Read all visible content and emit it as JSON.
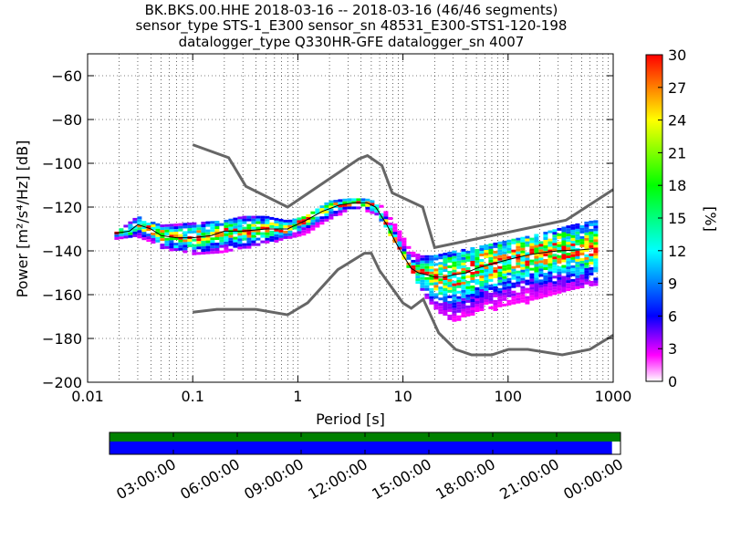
{
  "title_lines": [
    "BK.BKS.00.HHE   2018-03-16 -- 2018-03-16  (46/46 segments)",
    "sensor_type STS-1_E300 sensor_sn 48531_E300-STS1-120-198",
    "datalogger_type Q330HR-GFE datalogger_sn 4007"
  ],
  "chart_data": {
    "type": "heatmap",
    "xlabel": "Period [s]",
    "ylabel": "Power [m²/s⁴/Hz] [dB]",
    "x_scale": "log",
    "xlim": [
      0.01,
      1000
    ],
    "ylim": [
      -200,
      -50
    ],
    "x_ticks": [
      0.01,
      0.1,
      1,
      10,
      100,
      1000
    ],
    "x_tick_labels": [
      "0.01",
      "0.1",
      "1",
      "10",
      "100",
      "1000"
    ],
    "y_ticks": [
      -200,
      -180,
      -160,
      -140,
      -120,
      -100,
      -80,
      -60
    ],
    "y_tick_labels": [
      "−200",
      "−180",
      "−160",
      "−140",
      "−120",
      "−100",
      "−80",
      "−60"
    ],
    "grid": true,
    "colorbar": {
      "label": "[%]",
      "range": [
        0,
        30
      ],
      "ticks": [
        0,
        3,
        6,
        9,
        12,
        15,
        18,
        21,
        24,
        27,
        30
      ],
      "colormap": "pqlx"
    },
    "noise_models": {
      "high": {
        "period": [
          0.1,
          0.22,
          0.32,
          0.8,
          3.8,
          4.6,
          6.3,
          7.9,
          15.4,
          20,
          354.8,
          1000
        ],
        "power": [
          -91.5,
          -97.4,
          -110.5,
          -120,
          -98,
          -96.5,
          -101,
          -113.5,
          -120,
          -138.5,
          -126,
          -112
        ]
      },
      "low": {
        "period": [
          0.1,
          0.17,
          0.4,
          0.8,
          1.24,
          2.4,
          4.3,
          5,
          6,
          10,
          12,
          15.6,
          21.9,
          31.6,
          45,
          70,
          101,
          154,
          328,
          600,
          1000
        ],
        "power": [
          -168,
          -166.7,
          -166.7,
          -169.2,
          -163.7,
          -148.6,
          -141.1,
          -141.1,
          -149,
          -163.8,
          -166.2,
          -162.1,
          -177.5,
          -185,
          -187.5,
          -187.5,
          -185,
          -185,
          -187.5,
          -185,
          -178.5
        ]
      }
    },
    "mode_curve": {
      "period": [
        0.018,
        0.025,
        0.03,
        0.04,
        0.05,
        0.07,
        0.1,
        0.15,
        0.2,
        0.3,
        0.5,
        0.8,
        1.2,
        1.7,
        2.5,
        3.5,
        4.5,
        5.5,
        7,
        8.5,
        10,
        12,
        14,
        17,
        20,
        25,
        30,
        40,
        50,
        70,
        100,
        150,
        200,
        300,
        500,
        650
      ],
      "power": [
        -132,
        -131,
        -128,
        -130,
        -133,
        -134,
        -134,
        -133,
        -131,
        -131,
        -130,
        -130,
        -126,
        -122,
        -119,
        -118,
        -118,
        -120,
        -128,
        -136,
        -142,
        -148,
        -150,
        -151,
        -152,
        -152,
        -151,
        -150,
        -148,
        -146,
        -144,
        -142,
        -141,
        -140,
        -139.5,
        -139
      ]
    },
    "psd_spread": {
      "period": [
        0.018,
        0.03,
        0.05,
        0.1,
        0.2,
        0.3,
        0.5,
        0.8,
        1.2,
        2,
        3,
        4.5,
        6,
        8,
        10,
        12,
        15,
        20,
        30,
        50,
        100,
        200,
        400,
        650
      ],
      "upper": [
        -132,
        -124,
        -128,
        -127,
        -126,
        -124,
        -124,
        -126,
        -124,
        -117,
        -116,
        -116,
        -118,
        -126,
        -133,
        -140,
        -142,
        -142,
        -140,
        -138,
        -135,
        -132,
        -128,
        -126
      ],
      "lower": [
        -134,
        -133,
        -138,
        -141,
        -140,
        -139,
        -136,
        -134,
        -132,
        -125,
        -121,
        -121,
        -124,
        -134,
        -142,
        -149,
        -158,
        -166,
        -172,
        -168,
        -165,
        -162,
        -158,
        -155
      ]
    }
  },
  "time_axis": {
    "labels": [
      "03:00:00",
      "06:00:00",
      "09:00:00",
      "12:00:00",
      "15:00:00",
      "18:00:00",
      "21:00:00",
      "00:00:00"
    ],
    "hours": [
      3,
      6,
      9,
      12,
      15,
      18,
      21,
      24
    ],
    "data_coverage": [
      0,
      23.6
    ],
    "gap_coverage": [
      0,
      24
    ]
  },
  "colors": {
    "noise_model": "#666666",
    "mode_curve": "#000000",
    "coverage_bar": "#0000ff",
    "gap_bar": "#008000"
  }
}
